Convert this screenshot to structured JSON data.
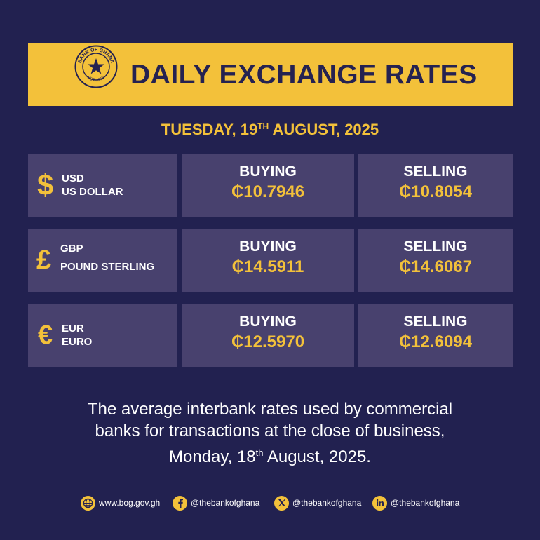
{
  "header": {
    "seal_top_text": "BANK OF GHANA",
    "seal_bottom_text": "EST. 1957",
    "title": "DAILY EXCHANGE RATES"
  },
  "date": {
    "prefix": "TUESDAY, 19",
    "suffix_sup": "TH",
    "rest": " AUGUST, 2025"
  },
  "rates": [
    {
      "symbol": "$",
      "code": "USD",
      "name": "US DOLLAR",
      "buying_label": "BUYING",
      "buying": "₵10.7946",
      "selling_label": "SELLING",
      "selling": "₵10.8054"
    },
    {
      "symbol": "£",
      "code": "GBP",
      "name": "POUND STERLING",
      "buying_label": "BUYING",
      "buying": "₵14.5911",
      "selling_label": "SELLING",
      "selling": "₵14.6067"
    },
    {
      "symbol": "€",
      "code": "EUR",
      "name": "EURO",
      "buying_label": "BUYING",
      "buying": "₵12.5970",
      "selling_label": "SELLING",
      "selling": "₵12.6094"
    }
  ],
  "footnote": {
    "line1": "The average interbank rates used by commercial",
    "line2": "banks for transactions at the close of business,",
    "line3_pre": "Monday, 18",
    "line3_sup": "th",
    "line3_post": " August, 2025."
  },
  "socials": [
    {
      "icon": "globe-icon",
      "text": "www.bog.gov.gh"
    },
    {
      "icon": "facebook-icon",
      "text": "@thebankofghana"
    },
    {
      "icon": "x-icon",
      "text": "@thebankofghana"
    },
    {
      "icon": "linkedin-icon",
      "text": "@thebankofghana"
    }
  ],
  "colors": {
    "background": "#222150",
    "accent": "#f3c13a",
    "cell": "#48416e"
  }
}
